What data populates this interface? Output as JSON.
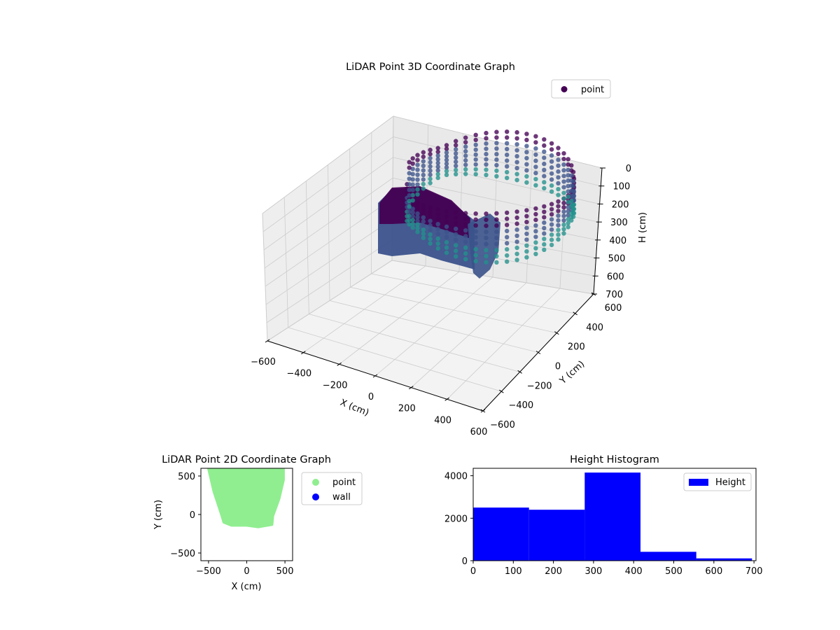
{
  "colors": {
    "background": "#ffffff",
    "pane": "#f2f2f2",
    "grid": "#cccccc",
    "viridis_dark": "#440154",
    "viridis_mid": "#3b528b",
    "viridis_teal": "#21918c",
    "point_2d": "#90ee90",
    "wall_2d": "#0000ff",
    "histogram": "#0000ff"
  },
  "chart_data": [
    {
      "type": "scatter3d",
      "title": "LiDAR Point 3D Coordinate Graph",
      "xlabel": "X (cm)",
      "ylabel": "Y (cm)",
      "zlabel": "H (cm)",
      "xlim": [
        -600,
        600
      ],
      "ylim": [
        -600,
        600
      ],
      "zlim": [
        0,
        700
      ],
      "z_inverted": true,
      "xticks": [
        "−600",
        "−400",
        "−200",
        "0",
        "200",
        "400",
        "600"
      ],
      "yticks": [
        "−600",
        "−400",
        "−200",
        "0",
        "200",
        "400",
        "600"
      ],
      "zticks": [
        "0",
        "100",
        "200",
        "300",
        "400",
        "500",
        "600",
        "700"
      ],
      "legend": [
        {
          "name": "point",
          "color": "#440154"
        }
      ],
      "legend_position": "top-right",
      "grid": true,
      "colormap": "viridis"
    },
    {
      "type": "scatter",
      "title": "LiDAR Point 2D Coordinate Graph",
      "xlabel": "X (cm)",
      "ylabel": "Y (cm)",
      "xlim": [
        -600,
        600
      ],
      "ylim": [
        -600,
        600
      ],
      "xticks": [
        "−500",
        "0",
        "500"
      ],
      "yticks": [
        "−500",
        "0",
        "500"
      ],
      "series": [
        {
          "name": "point",
          "color": "#90ee90",
          "outline": [
            [
              -500,
              600
            ],
            [
              -430,
              300
            ],
            [
              -330,
              0
            ],
            [
              -300,
              -100
            ],
            [
              -200,
              -140
            ],
            [
              0,
              -140
            ],
            [
              150,
              -160
            ],
            [
              330,
              -130
            ],
            [
              340,
              -20
            ],
            [
              420,
              200
            ],
            [
              480,
              450
            ],
            [
              480,
              600
            ]
          ]
        },
        {
          "name": "wall",
          "color": "#0000ff",
          "outline": []
        }
      ],
      "legend_position": "outside-right"
    },
    {
      "type": "histogram",
      "title": "Height Histogram",
      "xlim": [
        0,
        705
      ],
      "ylim": [
        0,
        4350
      ],
      "xticks": [
        "0",
        "100",
        "200",
        "300",
        "400",
        "500",
        "600",
        "700"
      ],
      "yticks": [
        "0",
        "2000",
        "4000"
      ],
      "bins": [
        {
          "start": 0,
          "end": 139,
          "count": 2500
        },
        {
          "start": 139,
          "end": 278,
          "count": 2400
        },
        {
          "start": 278,
          "end": 417,
          "count": 4150
        },
        {
          "start": 417,
          "end": 556,
          "count": 420
        },
        {
          "start": 556,
          "end": 695,
          "count": 110
        }
      ],
      "series": [
        {
          "name": "Height",
          "color": "#0000ff"
        }
      ],
      "legend_position": "top-right"
    }
  ]
}
